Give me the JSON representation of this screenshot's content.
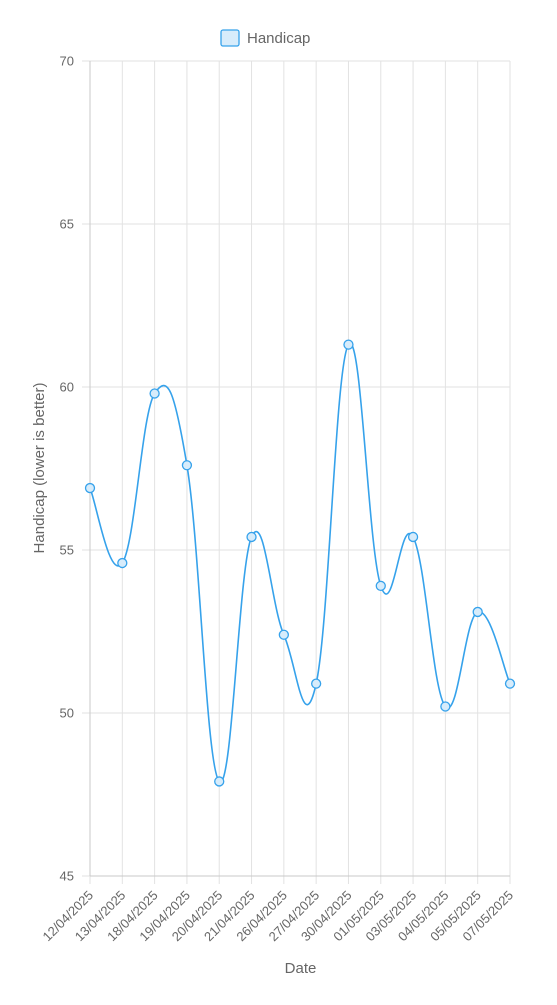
{
  "chart_data": {
    "type": "line",
    "x": [
      "12/04/2025",
      "13/04/2025",
      "18/04/2025",
      "19/04/2025",
      "20/04/2025",
      "21/04/2025",
      "26/04/2025",
      "27/04/2025",
      "30/04/2025",
      "01/05/2025",
      "03/05/2025",
      "04/05/2025",
      "05/05/2025",
      "07/05/2025"
    ],
    "series": [
      {
        "name": "Handicap",
        "values": [
          56.9,
          54.6,
          59.8,
          57.6,
          47.9,
          55.4,
          52.4,
          50.9,
          61.3,
          53.9,
          55.4,
          50.2,
          53.1,
          50.9
        ],
        "color": "#36a2eb",
        "fill": "#d7ecfb"
      }
    ],
    "xlabel": "Date",
    "ylabel": "Handicap (lower is better)",
    "ylim": [
      45,
      70
    ],
    "yticks": [
      45,
      50,
      55,
      60,
      65,
      70
    ],
    "grid": true,
    "legend_position": "top-center"
  }
}
